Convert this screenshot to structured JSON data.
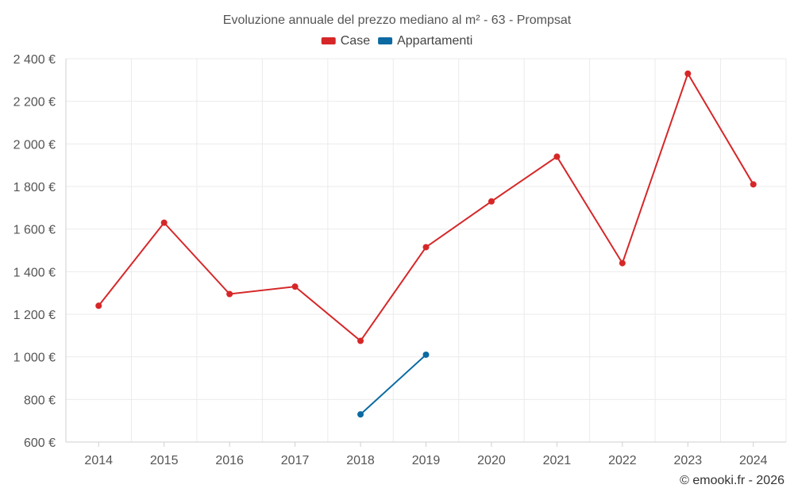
{
  "chart_data": {
    "type": "line",
    "title": "Evoluzione annuale del prezzo mediano al m² - 63 - Prompsat",
    "x": [
      "2014",
      "2015",
      "2016",
      "2017",
      "2018",
      "2019",
      "2020",
      "2021",
      "2022",
      "2023",
      "2024"
    ],
    "ylim": [
      600,
      2400
    ],
    "y_ticks": [
      600,
      800,
      1000,
      1200,
      1400,
      1600,
      1800,
      2000,
      2200,
      2400
    ],
    "y_tick_labels": [
      "600 €",
      "800 €",
      "1 000 €",
      "1 200 €",
      "1 400 €",
      "1 600 €",
      "1 800 €",
      "2 000 €",
      "2 200 €",
      "2 400 €"
    ],
    "grid": true,
    "legend_position": "top-center",
    "series": [
      {
        "name": "Case",
        "color": "#d62728",
        "values": [
          1240,
          1630,
          1295,
          1330,
          1075,
          1515,
          1730,
          1940,
          1440,
          2330,
          1810
        ]
      },
      {
        "name": "Appartamenti",
        "color": "#0b6aa2",
        "values": [
          null,
          null,
          null,
          null,
          730,
          1010,
          null,
          null,
          null,
          null,
          null
        ]
      }
    ]
  },
  "credit": "© emooki.fr - 2026"
}
